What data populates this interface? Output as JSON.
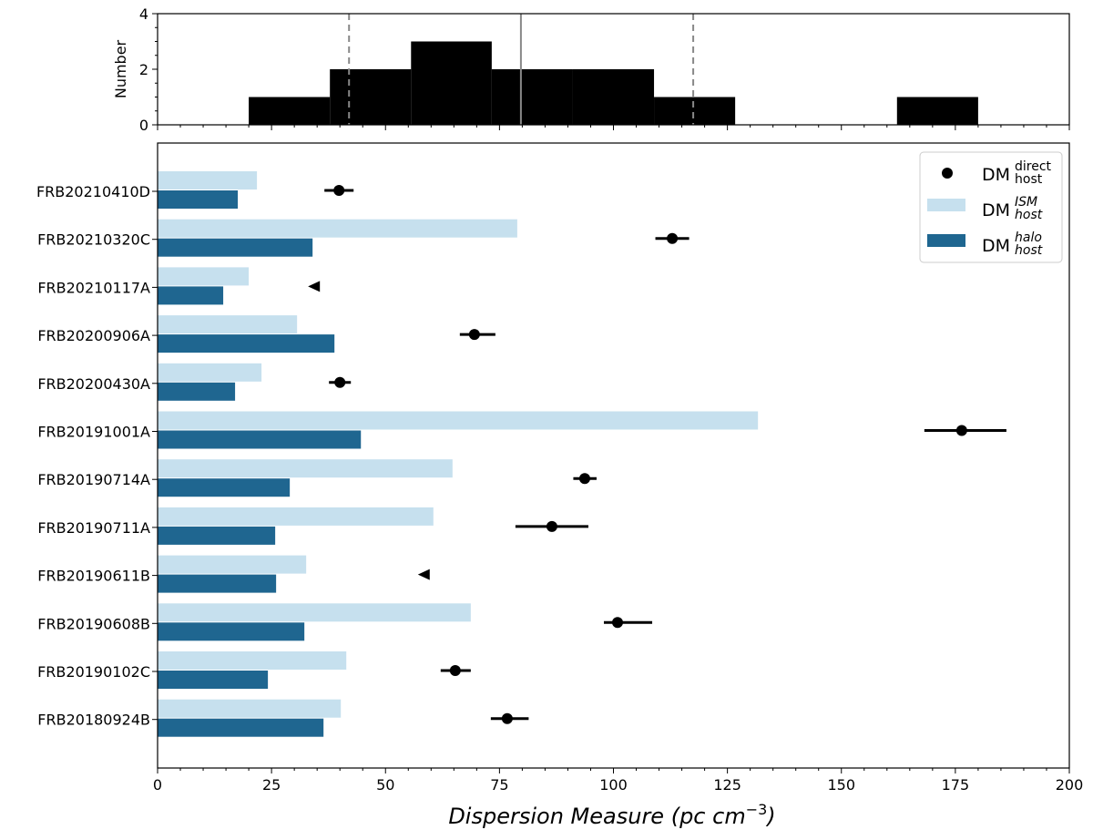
{
  "chart_data": [
    {
      "type": "bar",
      "subtype": "histogram",
      "ylabel": "Number",
      "ylim": [
        0,
        4
      ],
      "yticks": [
        "0",
        "2",
        "4"
      ],
      "bin_edges": [
        20,
        37.8,
        55.6,
        73.3,
        91.1,
        108.9,
        126.7,
        144.4,
        162.2,
        180
      ],
      "counts": [
        1,
        2,
        3,
        2,
        2,
        1,
        0,
        0,
        1
      ],
      "vlines": [
        {
          "x": 42.0,
          "style": "dashed"
        },
        {
          "x": 79.7,
          "style": "solid"
        },
        {
          "x": 117.5,
          "style": "dashed"
        }
      ],
      "xlim": [
        0,
        200
      ]
    },
    {
      "type": "bar",
      "orientation": "horizontal",
      "xlabel": "Dispersion Measure (pc cm",
      "xlabel_sup": "−3",
      "xlabel_close": ")",
      "xlim": [
        0,
        200
      ],
      "xticks": [
        "0",
        "25",
        "50",
        "75",
        "100",
        "125",
        "150",
        "175",
        "200"
      ],
      "legend_position": "top-right",
      "categories": [
        "FRB20210410D",
        "FRB20210320C",
        "FRB20210117A",
        "FRB20200906A",
        "FRB20200430A",
        "FRB20191001A",
        "FRB20190714A",
        "FRB20190711A",
        "FRB20190611B",
        "FRB20190608B",
        "FRB20190102C",
        "FRB20180924B"
      ],
      "series": [
        {
          "name": "DM",
          "sup": "ISM",
          "sub": "host",
          "color": "#c6e0ee",
          "values": [
            21.8,
            78.9,
            20.0,
            30.6,
            22.8,
            131.7,
            64.7,
            60.5,
            32.6,
            68.7,
            41.4,
            40.2
          ]
        },
        {
          "name": "DM",
          "sup": "halo",
          "sub": "host",
          "color": "#1f6690",
          "values": [
            17.6,
            34.0,
            14.4,
            38.8,
            17.0,
            44.6,
            29.0,
            25.8,
            26.0,
            32.2,
            24.2,
            36.4
          ]
        },
        {
          "name": "DM",
          "sup": "direct",
          "sub": "host",
          "color": "#000000",
          "values": [
            39.8,
            112.9,
            34.4,
            69.5,
            40.0,
            176.4,
            93.7,
            86.5,
            58.5,
            100.9,
            65.3,
            76.7
          ],
          "err_low": [
            3.2,
            3.7,
            null,
            3.2,
            2.4,
            8.2,
            2.5,
            8.0,
            null,
            3.0,
            3.2,
            3.6
          ],
          "err_high": [
            3.2,
            3.7,
            null,
            4.6,
            2.4,
            9.8,
            2.6,
            8.0,
            null,
            7.6,
            3.4,
            4.7
          ],
          "upper_limit": [
            false,
            false,
            true,
            false,
            false,
            false,
            false,
            false,
            true,
            false,
            false,
            false
          ]
        }
      ]
    }
  ]
}
